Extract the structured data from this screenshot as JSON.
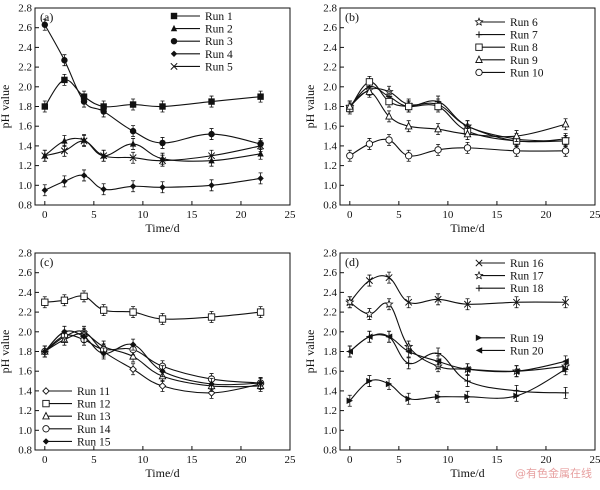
{
  "watermark": "@有色金属在线",
  "chart_data": [
    {
      "type": "line",
      "panel_label": "(a)",
      "xlabel": "Time/d",
      "ylabel": "pH value",
      "xlim": [
        -1,
        25
      ],
      "ylim": [
        0.8,
        2.8
      ],
      "xticks": [
        0,
        5,
        10,
        15,
        20,
        25
      ],
      "yticks": [
        0.8,
        1.0,
        1.2,
        1.4,
        1.6,
        1.8,
        2.0,
        2.2,
        2.4,
        2.6,
        2.8
      ],
      "legend": "top-right",
      "series": [
        {
          "name": "Run 1",
          "marker": "square",
          "x": [
            0,
            2,
            4,
            6,
            9,
            12,
            17,
            22
          ],
          "y": [
            1.8,
            2.07,
            1.9,
            1.8,
            1.82,
            1.8,
            1.85,
            1.9
          ]
        },
        {
          "name": "Run 2",
          "marker": "triangle",
          "x": [
            0,
            2,
            4,
            6,
            9,
            12,
            17,
            22
          ],
          "y": [
            1.3,
            1.45,
            1.46,
            1.3,
            1.42,
            1.27,
            1.25,
            1.32
          ]
        },
        {
          "name": "Run 3",
          "marker": "circle",
          "x": [
            0,
            2,
            4,
            6,
            9,
            12,
            17,
            22
          ],
          "y": [
            2.63,
            2.27,
            1.85,
            1.75,
            1.55,
            1.43,
            1.52,
            1.42
          ]
        },
        {
          "name": "Run 4",
          "marker": "diamond",
          "x": [
            0,
            2,
            4,
            6,
            9,
            12,
            17,
            22
          ],
          "y": [
            0.95,
            1.04,
            1.1,
            0.96,
            0.99,
            0.98,
            1.0,
            1.07
          ]
        },
        {
          "name": "Run 5",
          "marker": "x",
          "x": [
            0,
            2,
            4,
            6,
            9,
            12,
            17,
            22
          ],
          "y": [
            1.3,
            1.35,
            1.45,
            1.3,
            1.28,
            1.25,
            1.3,
            1.4
          ]
        }
      ]
    },
    {
      "type": "line",
      "panel_label": "(b)",
      "xlabel": "Time/d",
      "ylabel": "pH value",
      "xlim": [
        -1,
        25
      ],
      "ylim": [
        0.8,
        2.8
      ],
      "xticks": [
        0,
        5,
        10,
        15,
        20,
        25
      ],
      "yticks": [
        0.8,
        1.0,
        1.2,
        1.4,
        1.6,
        1.8,
        2.0,
        2.2,
        2.4,
        2.6,
        2.8
      ],
      "legend": "top-right",
      "series": [
        {
          "name": "Run 6",
          "marker": "star",
          "x": [
            0,
            2,
            4,
            6,
            9,
            12,
            17,
            22
          ],
          "y": [
            1.8,
            1.97,
            1.95,
            1.82,
            1.82,
            1.6,
            1.45,
            1.47
          ]
        },
        {
          "name": "Run 7",
          "marker": "plus",
          "x": [
            0,
            2,
            4,
            6,
            9,
            12,
            17,
            22
          ],
          "y": [
            1.8,
            2.0,
            1.9,
            1.8,
            1.85,
            1.6,
            1.47,
            1.45
          ]
        },
        {
          "name": "Run 8",
          "marker": "open-square",
          "x": [
            0,
            2,
            4,
            6,
            9,
            12,
            17,
            22
          ],
          "y": [
            1.78,
            2.05,
            1.85,
            1.8,
            1.8,
            1.55,
            1.45,
            1.45
          ]
        },
        {
          "name": "Run 9",
          "marker": "open-triangle",
          "x": [
            0,
            2,
            4,
            6,
            9,
            12,
            17,
            22
          ],
          "y": [
            1.8,
            1.95,
            1.7,
            1.6,
            1.57,
            1.52,
            1.5,
            1.62
          ]
        },
        {
          "name": "Run 10",
          "marker": "open-circle",
          "x": [
            0,
            2,
            4,
            6,
            9,
            12,
            17,
            22
          ],
          "y": [
            1.3,
            1.42,
            1.46,
            1.3,
            1.36,
            1.38,
            1.35,
            1.35
          ]
        }
      ]
    },
    {
      "type": "line",
      "panel_label": "(c)",
      "xlabel": "Time/d",
      "ylabel": "pH value",
      "xlim": [
        -1,
        25
      ],
      "ylim": [
        0.8,
        2.8
      ],
      "xticks": [
        0,
        5,
        10,
        15,
        20,
        25
      ],
      "yticks": [
        0.8,
        1.0,
        1.2,
        1.4,
        1.6,
        1.8,
        2.0,
        2.2,
        2.4,
        2.6,
        2.8
      ],
      "legend": "bottom-left",
      "series": [
        {
          "name": "Run 11",
          "marker": "open-diamond",
          "x": [
            0,
            2,
            4,
            6,
            9,
            12,
            17,
            22
          ],
          "y": [
            1.8,
            1.95,
            2.0,
            1.8,
            1.62,
            1.45,
            1.38,
            1.47
          ]
        },
        {
          "name": "Run 12",
          "marker": "open-square",
          "x": [
            0,
            2,
            4,
            6,
            9,
            12,
            17,
            22
          ],
          "y": [
            2.3,
            2.32,
            2.36,
            2.22,
            2.2,
            2.13,
            2.15,
            2.2
          ]
        },
        {
          "name": "Run 13",
          "marker": "open-triangle",
          "x": [
            0,
            2,
            4,
            6,
            9,
            12,
            17,
            22
          ],
          "y": [
            1.8,
            1.92,
            1.98,
            1.85,
            1.75,
            1.55,
            1.45,
            1.45
          ]
        },
        {
          "name": "Run 14",
          "marker": "open-circle",
          "x": [
            0,
            2,
            4,
            6,
            9,
            12,
            17,
            22
          ],
          "y": [
            1.8,
            1.96,
            1.92,
            1.82,
            1.82,
            1.65,
            1.52,
            1.48
          ]
        },
        {
          "name": "Run 15",
          "marker": "diamond",
          "x": [
            0,
            2,
            4,
            6,
            9,
            12,
            17,
            22
          ],
          "y": [
            1.8,
            2.0,
            1.95,
            1.78,
            1.87,
            1.6,
            1.47,
            1.48
          ]
        }
      ]
    },
    {
      "type": "line",
      "panel_label": "(d)",
      "xlabel": "Time/d",
      "ylabel": "pH value",
      "xlim": [
        -1,
        25
      ],
      "ylim": [
        0.8,
        2.8
      ],
      "xticks": [
        0,
        5,
        10,
        15,
        20,
        25
      ],
      "yticks": [
        0.8,
        1.0,
        1.2,
        1.4,
        1.6,
        1.8,
        2.0,
        2.2,
        2.4,
        2.6,
        2.8
      ],
      "legend": "top-right",
      "series": [
        {
          "name": "Run 16",
          "marker": "x",
          "x": [
            0,
            2,
            4,
            6,
            9,
            12,
            17,
            22
          ],
          "y": [
            2.3,
            2.52,
            2.55,
            2.3,
            2.33,
            2.28,
            2.3,
            2.3
          ]
        },
        {
          "name": "Run 17",
          "marker": "star",
          "x": [
            0,
            2,
            4,
            6,
            9,
            12,
            17,
            22
          ],
          "y": [
            2.3,
            2.18,
            2.28,
            1.85,
            1.65,
            1.62,
            1.6,
            1.65
          ]
        },
        {
          "name": "Run 18",
          "marker": "plus",
          "x": [
            0,
            2,
            4,
            6,
            9,
            12,
            17,
            22
          ],
          "y": [
            1.8,
            1.95,
            1.95,
            1.68,
            1.78,
            1.5,
            1.4,
            1.38
          ]
        },
        {
          "name": "Run 19",
          "marker": "right-triangle",
          "x": [
            0,
            2,
            4,
            6,
            9,
            12,
            17,
            22
          ],
          "y": [
            1.3,
            1.5,
            1.47,
            1.32,
            1.34,
            1.34,
            1.35,
            1.62
          ]
        },
        {
          "name": "Run 20",
          "marker": "left-triangle",
          "x": [
            0,
            2,
            4,
            6,
            9,
            12,
            17,
            22
          ],
          "y": [
            1.8,
            1.95,
            1.95,
            1.8,
            1.7,
            1.62,
            1.6,
            1.7
          ]
        }
      ]
    }
  ]
}
